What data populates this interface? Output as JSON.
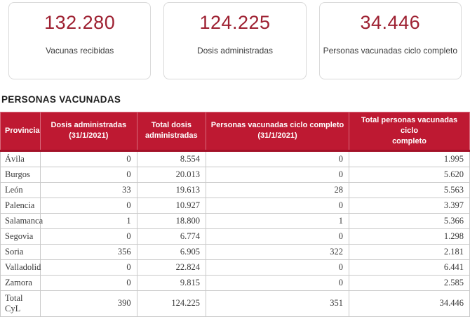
{
  "colors": {
    "header_bg": "#be1932",
    "number_red": "#9e2132"
  },
  "cards": [
    {
      "value": "132.280",
      "label": "Vacunas recibidas"
    },
    {
      "value": "124.225",
      "label": "Dosis administradas"
    },
    {
      "value": "34.446",
      "label": "Personas vacunadas ciclo completo"
    }
  ],
  "section_title": "PERSONAS VACUNADAS",
  "table": {
    "headers": [
      "Provincia",
      "Dosis administradas\n(31/1/2021)",
      "Total dosis\nadministradas",
      "Personas vacunadas ciclo completo\n(31/1/2021)",
      "Total personas vacunadas ciclo\ncompleto"
    ],
    "rows": [
      [
        "Ávila",
        "0",
        "8.554",
        "0",
        "1.995"
      ],
      [
        "Burgos",
        "0",
        "20.013",
        "0",
        "5.620"
      ],
      [
        "León",
        "33",
        "19.613",
        "28",
        "5.563"
      ],
      [
        "Palencia",
        "0",
        "10.927",
        "0",
        "3.397"
      ],
      [
        "Salamanca",
        "1",
        "18.800",
        "1",
        "5.366"
      ],
      [
        "Segovia",
        "0",
        "6.774",
        "0",
        "1.298"
      ],
      [
        "Soria",
        "356",
        "6.905",
        "322",
        "2.181"
      ],
      [
        "Valladolid",
        "0",
        "22.824",
        "0",
        "6.441"
      ],
      [
        "Zamora",
        "0",
        "9.815",
        "0",
        "2.585"
      ],
      [
        "Total CyL",
        "390",
        "124.225",
        "351",
        "34.446"
      ]
    ]
  }
}
